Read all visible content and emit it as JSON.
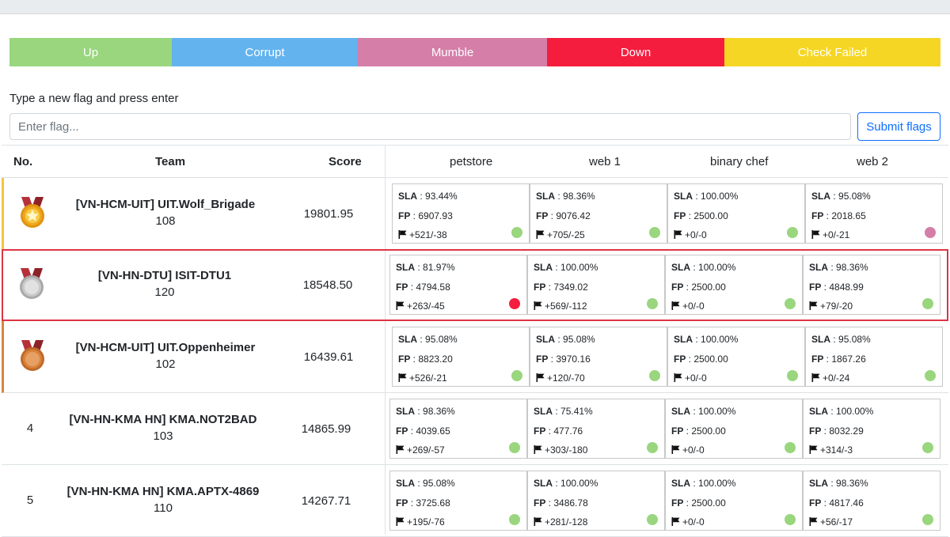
{
  "legend": [
    {
      "label": "Up",
      "color": "#99d67e"
    },
    {
      "label": "Corrupt",
      "color": "#63b3ee"
    },
    {
      "label": "Mumble",
      "color": "#d47ea8"
    },
    {
      "label": "Down",
      "color": "#f51d3e"
    },
    {
      "label": "Check Failed",
      "color": "#f5d624"
    }
  ],
  "flag_form": {
    "label": "Type a new flag and press enter",
    "placeholder": "Enter flag...",
    "submit_label": "Submit flags"
  },
  "table": {
    "headers": {
      "no": "No.",
      "team": "Team",
      "score": "Score"
    },
    "services": [
      "petstore",
      "web 1",
      "binary chef",
      "web 2"
    ],
    "status_colors": {
      "up": "#99d67e",
      "mumble": "#d47ea8",
      "down": "#f51d3e"
    },
    "rows": [
      {
        "place": "1",
        "medal": "gold-medal-icon",
        "team": "[VN-HCM-UIT] UIT.Wolf_Brigade",
        "team_id": "108",
        "score": "19801.95",
        "services": [
          {
            "sla": "93.44%",
            "fp": "6907.93",
            "flags": "+521/-38",
            "status": "up"
          },
          {
            "sla": "98.36%",
            "fp": "9076.42",
            "flags": "+705/-25",
            "status": "up"
          },
          {
            "sla": "100.00%",
            "fp": "2500.00",
            "flags": "+0/-0",
            "status": "up"
          },
          {
            "sla": "95.08%",
            "fp": "2018.65",
            "flags": "+0/-21",
            "status": "mumble"
          }
        ]
      },
      {
        "place": "2",
        "medal": "silver-medal-icon",
        "team": "[VN-HN-DTU] ISIT-DTU1",
        "team_id": "120",
        "score": "18548.50",
        "services": [
          {
            "sla": "81.97%",
            "fp": "4794.58",
            "flags": "+263/-45",
            "status": "down"
          },
          {
            "sla": "100.00%",
            "fp": "7349.02",
            "flags": "+569/-112",
            "status": "up"
          },
          {
            "sla": "100.00%",
            "fp": "2500.00",
            "flags": "+0/-0",
            "status": "up"
          },
          {
            "sla": "98.36%",
            "fp": "4848.99",
            "flags": "+79/-20",
            "status": "up"
          }
        ]
      },
      {
        "place": "3",
        "medal": "bronze-medal-icon",
        "team": "[VN-HCM-UIT] UIT.Oppenheimer",
        "team_id": "102",
        "score": "16439.61",
        "services": [
          {
            "sla": "95.08%",
            "fp": "8823.20",
            "flags": "+526/-21",
            "status": "up"
          },
          {
            "sla": "95.08%",
            "fp": "3970.16",
            "flags": "+120/-70",
            "status": "up"
          },
          {
            "sla": "100.00%",
            "fp": "2500.00",
            "flags": "+0/-0",
            "status": "up"
          },
          {
            "sla": "95.08%",
            "fp": "1867.26",
            "flags": "+0/-24",
            "status": "up"
          }
        ]
      },
      {
        "place": "4",
        "medal": "",
        "team": "[VN-HN-KMA HN] KMA.NOT2BAD",
        "team_id": "103",
        "score": "14865.99",
        "services": [
          {
            "sla": "98.36%",
            "fp": "4039.65",
            "flags": "+269/-57",
            "status": "up"
          },
          {
            "sla": "75.41%",
            "fp": "477.76",
            "flags": "+303/-180",
            "status": "up"
          },
          {
            "sla": "100.00%",
            "fp": "2500.00",
            "flags": "+0/-0",
            "status": "up"
          },
          {
            "sla": "100.00%",
            "fp": "8032.29",
            "flags": "+314/-3",
            "status": "up"
          }
        ]
      },
      {
        "place": "5",
        "medal": "",
        "team": "[VN-HN-KMA HN] KMA.APTX-4869",
        "team_id": "110",
        "score": "14267.71",
        "services": [
          {
            "sla": "95.08%",
            "fp": "3725.68",
            "flags": "+195/-76",
            "status": "up"
          },
          {
            "sla": "100.00%",
            "fp": "3486.78",
            "flags": "+281/-128",
            "status": "up"
          },
          {
            "sla": "100.00%",
            "fp": "2500.00",
            "flags": "+0/-0",
            "status": "up"
          },
          {
            "sla": "98.36%",
            "fp": "4817.46",
            "flags": "+56/-17",
            "status": "up"
          }
        ]
      }
    ]
  },
  "labels": {
    "sla": "SLA",
    "fp": "FP",
    "sep": " : "
  }
}
